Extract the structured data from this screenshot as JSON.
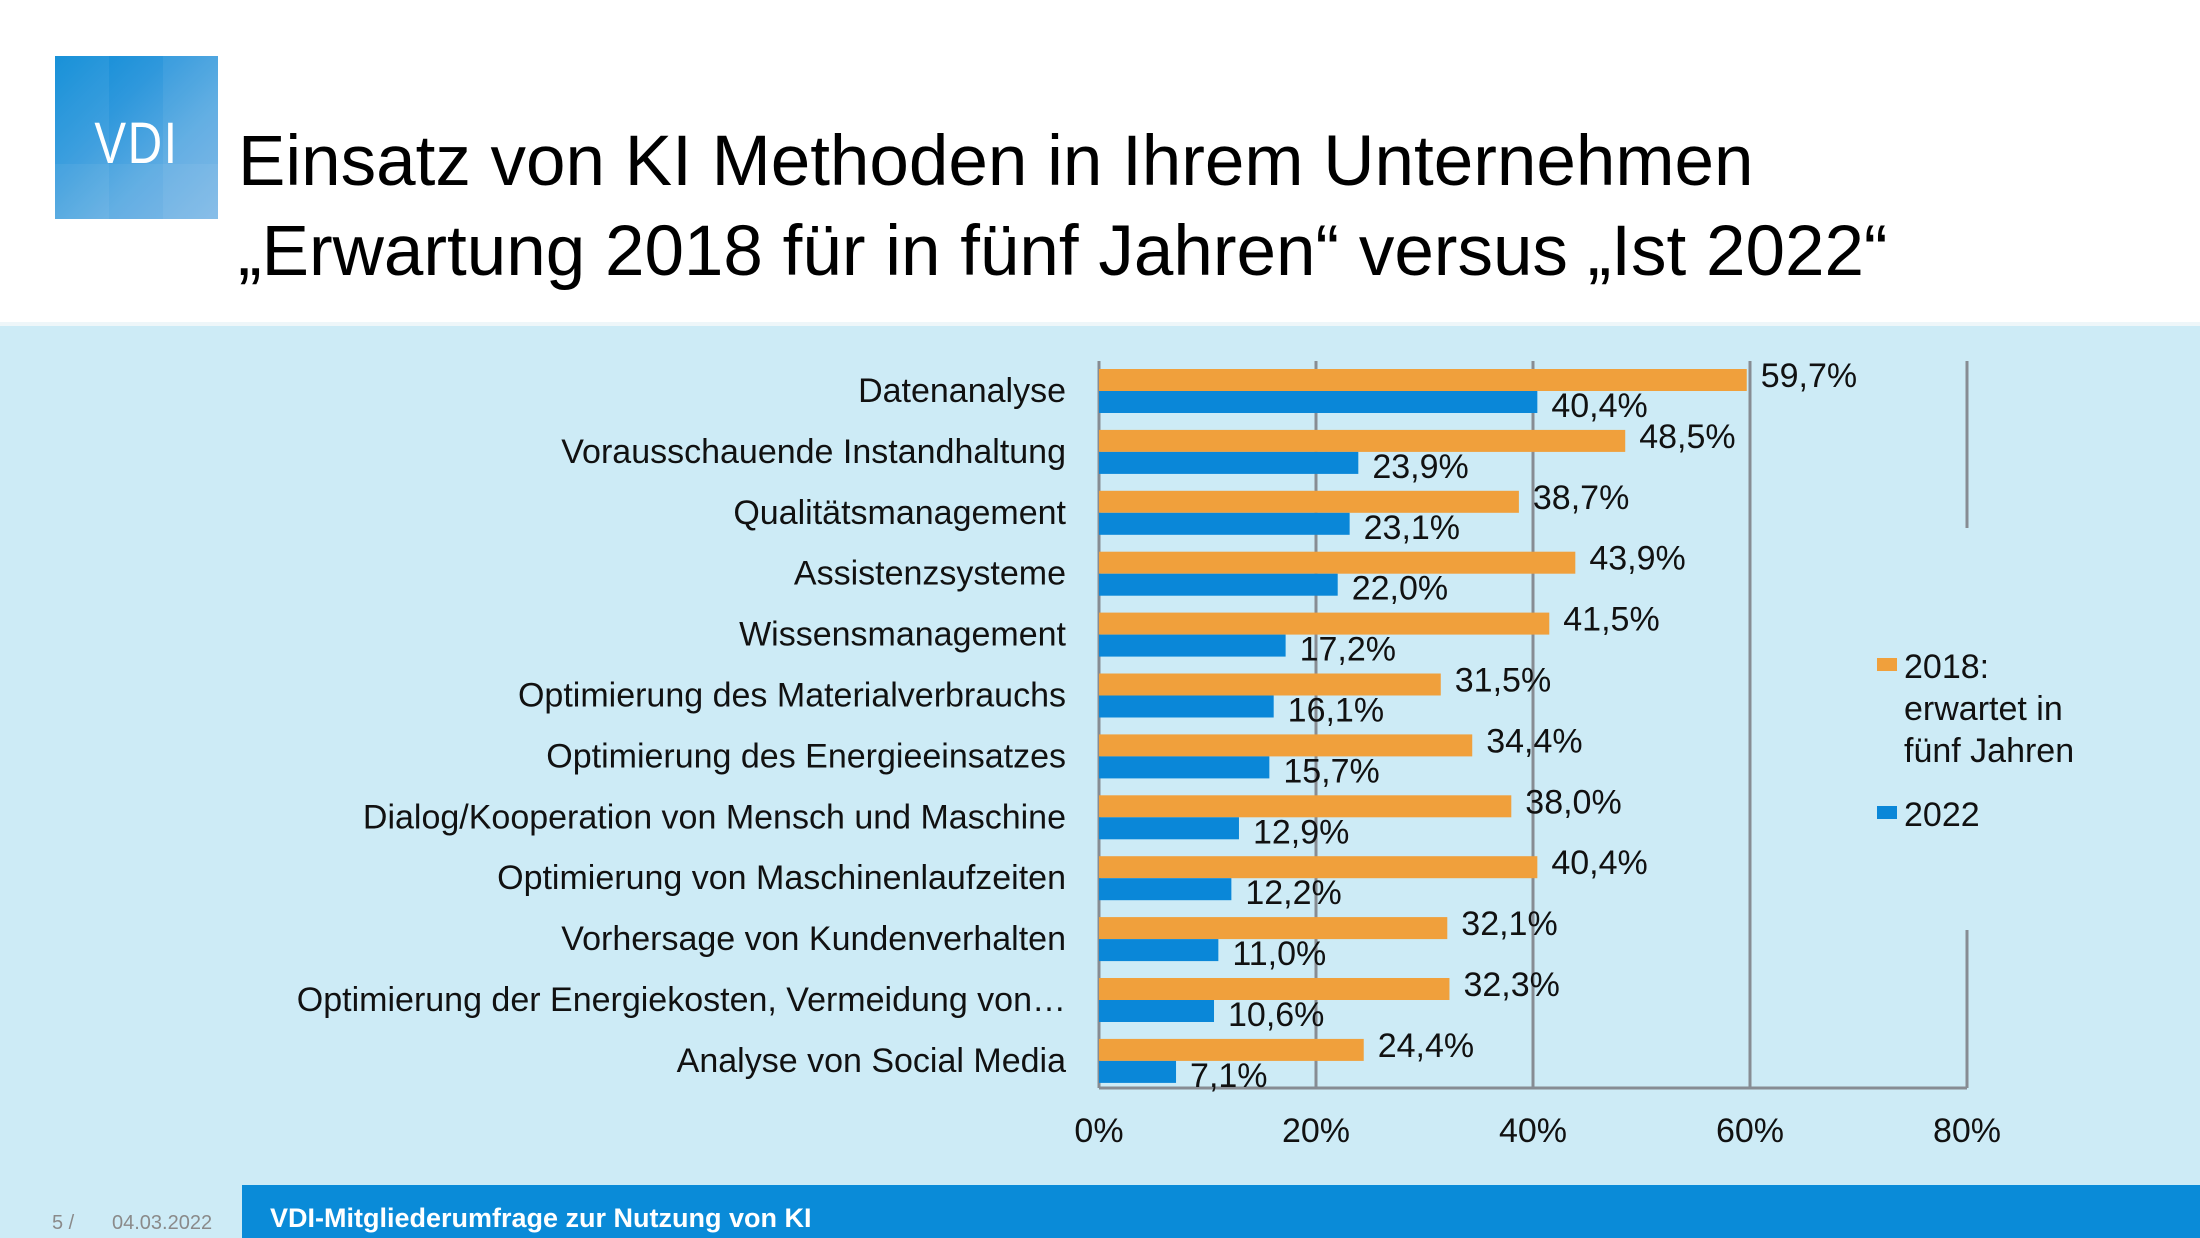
{
  "logo": {
    "text": "VDI"
  },
  "header": {
    "title_line1": "Einsatz von KI Methoden in Ihrem Unternehmen",
    "title_line2": "„Erwartung 2018 für in fünf Jahren“ versus „Ist 2022“"
  },
  "footer": {
    "page": "5 /",
    "date": "04.03.2022",
    "title": "VDI-Mitgliederumfrage zur Nutzung von KI"
  },
  "colors": {
    "background_band": "#cdebf6",
    "series_2018": "#f0a03c",
    "series_2022": "#0a87d8",
    "grid": "#878c93",
    "footer_bar": "#0a8bd8"
  },
  "chart_data": {
    "type": "bar",
    "orientation": "horizontal",
    "title": "Einsatz von KI Methoden in Ihrem Unternehmen – „Erwartung 2018 für in fünf Jahren“ versus „Ist 2022“",
    "xlabel": "",
    "ylabel": "",
    "xlim": [
      0,
      80
    ],
    "x_ticks": [
      "0%",
      "20%",
      "40%",
      "60%",
      "80%"
    ],
    "x_tick_values": [
      0,
      20,
      40,
      60,
      80
    ],
    "grid": "vertical",
    "legend_position": "right",
    "categories": [
      "Datenanalyse",
      "Vorausschauende Instandhaltung",
      "Qualitätsmanagement",
      "Assistenzsysteme",
      "Wissensmanagement",
      "Optimierung des Materialverbrauchs",
      "Optimierung des Energieeinsatzes",
      "Dialog/Kooperation von Mensch und Maschine",
      "Optimierung von Maschinenlaufzeiten",
      "Vorhersage von Kundenverhalten",
      "Optimierung der Energiekosten, Vermeidung von…",
      "Analyse von Social Media"
    ],
    "series": [
      {
        "name": "2018: erwartet in fünf Jahren",
        "legend_lines": [
          "2018:",
          "erwartet in",
          "fünf Jahren"
        ],
        "color": "#f0a03c",
        "values": [
          59.7,
          48.5,
          38.7,
          43.9,
          41.5,
          31.5,
          34.4,
          38.0,
          40.4,
          32.1,
          32.3,
          24.4
        ],
        "labels": [
          "59,7%",
          "48,5%",
          "38,7%",
          "43,9%",
          "41,5%",
          "31,5%",
          "34,4%",
          "38,0%",
          "40,4%",
          "32,1%",
          "32,3%",
          "24,4%"
        ]
      },
      {
        "name": "2022",
        "legend_lines": [
          "2022"
        ],
        "color": "#0a87d8",
        "values": [
          40.4,
          23.9,
          23.1,
          22.0,
          17.2,
          16.1,
          15.7,
          12.9,
          12.2,
          11.0,
          10.6,
          7.1
        ],
        "labels": [
          "40,4%",
          "23,9%",
          "23,1%",
          "22,0%",
          "17,2%",
          "16,1%",
          "15,7%",
          "12,9%",
          "12,2%",
          "11,0%",
          "10,6%",
          "7,1%"
        ]
      }
    ]
  }
}
